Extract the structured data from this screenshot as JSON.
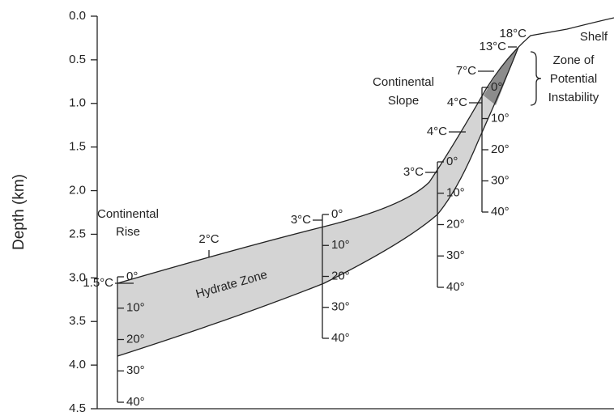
{
  "axis": {
    "label": "Depth (km)",
    "ylim": [
      0,
      4.5
    ],
    "yticks": [
      {
        "value": 0,
        "label": "0.0"
      },
      {
        "value": 0.5,
        "label": "0.5"
      },
      {
        "value": 1,
        "label": "1.0"
      },
      {
        "value": 1.5,
        "label": "1.5"
      },
      {
        "value": 2,
        "label": "2.0"
      },
      {
        "value": 2.5,
        "label": "2.5"
      },
      {
        "value": 3,
        "label": "3.0"
      },
      {
        "value": 3.5,
        "label": "3.5"
      },
      {
        "value": 4,
        "label": "4.0"
      },
      {
        "value": 4.5,
        "label": "4.5"
      }
    ]
  },
  "regions": {
    "rise": [
      "Continental",
      "Rise"
    ],
    "slope": [
      "Continental",
      "Slope"
    ],
    "shelf": "Shelf",
    "hydrate": "Hydrate Zone",
    "instability": [
      "Zone of",
      "Potential",
      "Instability"
    ]
  },
  "seafloor_temps": [
    "1.5°C",
    "2°C",
    "3°C",
    "3°C",
    "4°C",
    "4°C",
    "7°C",
    "13°C",
    "18°C"
  ],
  "scales": [
    {
      "ticks": [
        "0°",
        "10°",
        "20°",
        "30°",
        "40°"
      ]
    },
    {
      "ticks": [
        "0°",
        "10°",
        "20°",
        "30°",
        "40°"
      ]
    },
    {
      "ticks": [
        "0°",
        "10°",
        "20°",
        "30°",
        "40°"
      ]
    },
    {
      "ticks": [
        "0°",
        "10°",
        "20°",
        "30°",
        "40°"
      ]
    }
  ]
}
